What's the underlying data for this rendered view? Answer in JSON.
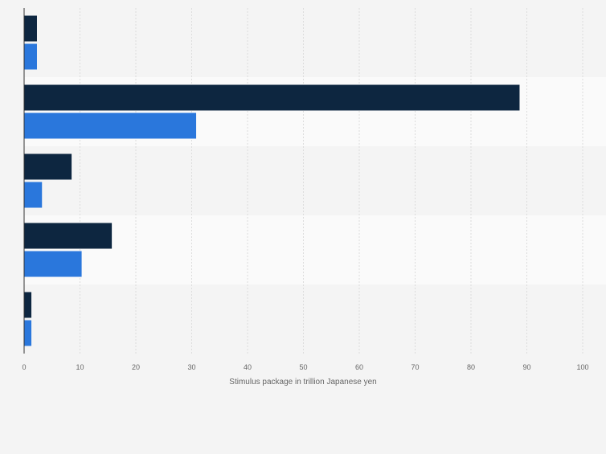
{
  "chart_data": {
    "type": "bar",
    "orientation": "horizontal",
    "categories": [
      "",
      "",
      "",
      "",
      ""
    ],
    "series": [
      {
        "values": [
          2.3,
          88.7,
          8.5,
          15.7,
          1.3
        ],
        "color": "#0d2640"
      },
      {
        "values": [
          2.3,
          30.8,
          3.2,
          10.3,
          1.3
        ],
        "color": "#2a77dc"
      }
    ],
    "xlabel": "Stimulus package in trillion Japanese yen",
    "xlim": [
      0,
      100
    ],
    "xticks": [
      0,
      10,
      20,
      30,
      40,
      50,
      60,
      70,
      80,
      90,
      100
    ],
    "grid": true,
    "band_colors": [
      "#f4f4f4",
      "#fafafa"
    ]
  }
}
